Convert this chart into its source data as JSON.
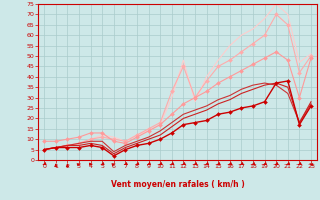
{
  "background_color": "#cde8e8",
  "grid_color": "#aacccc",
  "xlabel": "Vent moyen/en rafales ( km/h )",
  "xlabel_color": "#cc0000",
  "tick_color": "#cc0000",
  "xlim": [
    -0.5,
    23.5
  ],
  "ylim": [
    0,
    75
  ],
  "xticks": [
    0,
    1,
    2,
    3,
    4,
    5,
    6,
    7,
    8,
    9,
    10,
    11,
    12,
    13,
    14,
    15,
    16,
    17,
    18,
    19,
    20,
    21,
    22,
    23
  ],
  "yticks": [
    0,
    5,
    10,
    15,
    20,
    25,
    30,
    35,
    40,
    45,
    50,
    55,
    60,
    65,
    70,
    75
  ],
  "lines": [
    {
      "x": [
        0,
        1,
        2,
        3,
        4,
        5,
        6,
        7,
        8,
        9,
        10,
        11,
        12,
        13,
        14,
        15,
        16,
        17,
        18,
        19,
        20,
        21,
        22,
        23
      ],
      "y": [
        5,
        6,
        7,
        8,
        10,
        12,
        11,
        9,
        12,
        14,
        17,
        30,
        48,
        28,
        40,
        48,
        55,
        60,
        63,
        68,
        75,
        70,
        47,
        51
      ],
      "color": "#ffcccc",
      "marker": null,
      "markersize": 2.5,
      "linewidth": 0.8
    },
    {
      "x": [
        0,
        1,
        2,
        3,
        4,
        5,
        6,
        7,
        8,
        9,
        10,
        11,
        12,
        13,
        14,
        15,
        16,
        17,
        18,
        19,
        20,
        21,
        22,
        23
      ],
      "y": [
        5,
        6,
        7,
        8,
        10,
        11,
        10,
        9,
        12,
        15,
        18,
        33,
        45,
        30,
        38,
        45,
        48,
        52,
        56,
        60,
        70,
        65,
        42,
        50
      ],
      "color": "#ffaaaa",
      "marker": "D",
      "markersize": 2.0,
      "linewidth": 0.8
    },
    {
      "x": [
        0,
        1,
        2,
        3,
        4,
        5,
        6,
        7,
        8,
        9,
        10,
        11,
        12,
        13,
        14,
        15,
        16,
        17,
        18,
        19,
        20,
        21,
        22,
        23
      ],
      "y": [
        9,
        9,
        10,
        11,
        13,
        13,
        9,
        8,
        11,
        14,
        17,
        22,
        27,
        30,
        33,
        37,
        40,
        43,
        46,
        49,
        52,
        48,
        30,
        49
      ],
      "color": "#ff9999",
      "marker": "D",
      "markersize": 2.0,
      "linewidth": 0.8
    },
    {
      "x": [
        0,
        1,
        2,
        3,
        4,
        5,
        6,
        7,
        8,
        9,
        10,
        11,
        12,
        13,
        14,
        15,
        16,
        17,
        18,
        19,
        20,
        21,
        22,
        23
      ],
      "y": [
        5,
        6,
        7,
        8,
        9,
        9,
        4,
        7,
        9,
        11,
        14,
        18,
        22,
        24,
        26,
        29,
        31,
        34,
        36,
        37,
        36,
        32,
        18,
        27
      ],
      "color": "#cc3333",
      "marker": null,
      "markersize": 2.0,
      "linewidth": 0.8
    },
    {
      "x": [
        0,
        1,
        2,
        3,
        4,
        5,
        6,
        7,
        8,
        9,
        10,
        11,
        12,
        13,
        14,
        15,
        16,
        17,
        18,
        19,
        20,
        21,
        22,
        23
      ],
      "y": [
        5,
        6,
        7,
        7,
        8,
        7,
        3,
        6,
        8,
        10,
        12,
        16,
        20,
        22,
        24,
        27,
        29,
        32,
        34,
        36,
        37,
        35,
        18,
        28
      ],
      "color": "#cc2222",
      "marker": null,
      "markersize": 2.0,
      "linewidth": 0.8
    },
    {
      "x": [
        0,
        1,
        2,
        3,
        4,
        5,
        6,
        7,
        8,
        9,
        10,
        11,
        12,
        13,
        14,
        15,
        16,
        17,
        18,
        19,
        20,
        21,
        22,
        23
      ],
      "y": [
        5,
        6,
        6,
        6,
        7,
        6,
        2,
        5,
        7,
        8,
        10,
        13,
        17,
        18,
        19,
        22,
        23,
        25,
        26,
        28,
        37,
        38,
        17,
        26
      ],
      "color": "#cc0000",
      "marker": "D",
      "markersize": 2.0,
      "linewidth": 1.0
    }
  ],
  "arrow_angles": [
    225,
    90,
    90,
    45,
    0,
    225,
    45,
    225,
    225,
    225,
    225,
    225,
    225,
    225,
    225,
    225,
    225,
    225,
    225,
    225,
    225,
    225,
    225,
    135
  ]
}
